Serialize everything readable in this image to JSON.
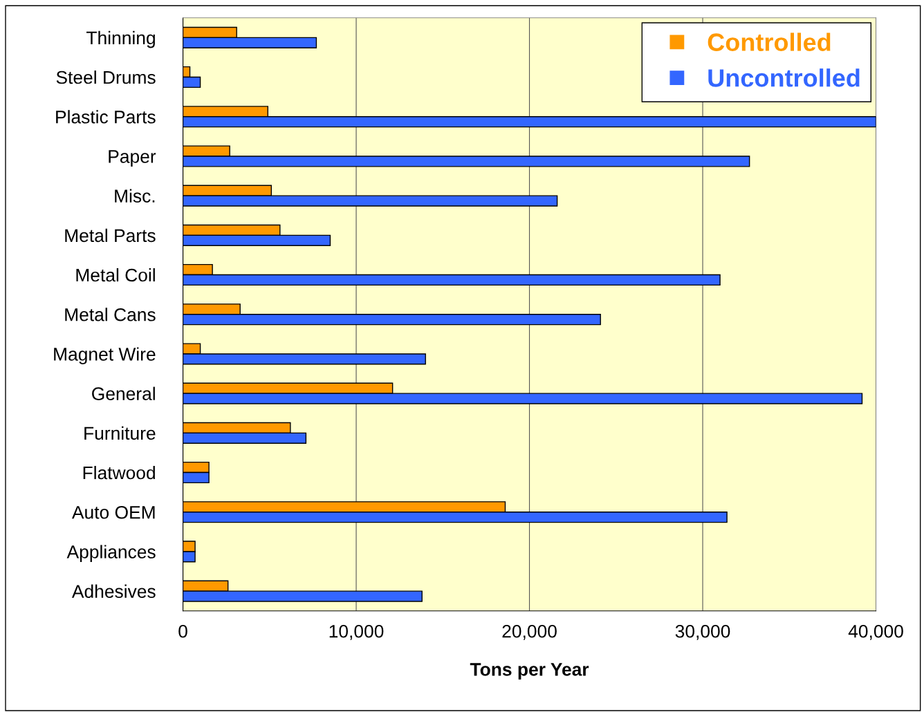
{
  "chart_data": {
    "type": "bar",
    "orientation": "horizontal",
    "xlabel": "Tons per Year",
    "categories": [
      "Thinning",
      "Steel Drums",
      "Plastic Parts",
      "Paper",
      "Misc.",
      "Metal Parts",
      "Metal Coil",
      "Metal Cans",
      "Magnet Wire",
      "General",
      "Furniture",
      "Flatwood",
      "Auto OEM",
      "Appliances",
      "Adhesives"
    ],
    "series": [
      {
        "name": "Controlled",
        "color": "#ff9900",
        "values": [
          3100,
          400,
          4900,
          2700,
          5100,
          5600,
          1700,
          3300,
          1000,
          12100,
          6200,
          1500,
          18600,
          700,
          2600
        ]
      },
      {
        "name": "Uncontrolled",
        "color": "#3366ff",
        "values": [
          7700,
          1000,
          40000,
          32700,
          21600,
          8500,
          31000,
          24100,
          14000,
          39200,
          7100,
          1500,
          31400,
          700,
          13800
        ]
      }
    ],
    "xlim": [
      0,
      40000
    ],
    "xticks": [
      {
        "value": 0,
        "label": "0"
      },
      {
        "value": 10000,
        "label": "10,000"
      },
      {
        "value": 20000,
        "label": "20,000"
      },
      {
        "value": 30000,
        "label": "30,000"
      },
      {
        "value": 40000,
        "label": "40,000"
      }
    ],
    "grid": "x",
    "legend": "top right"
  }
}
